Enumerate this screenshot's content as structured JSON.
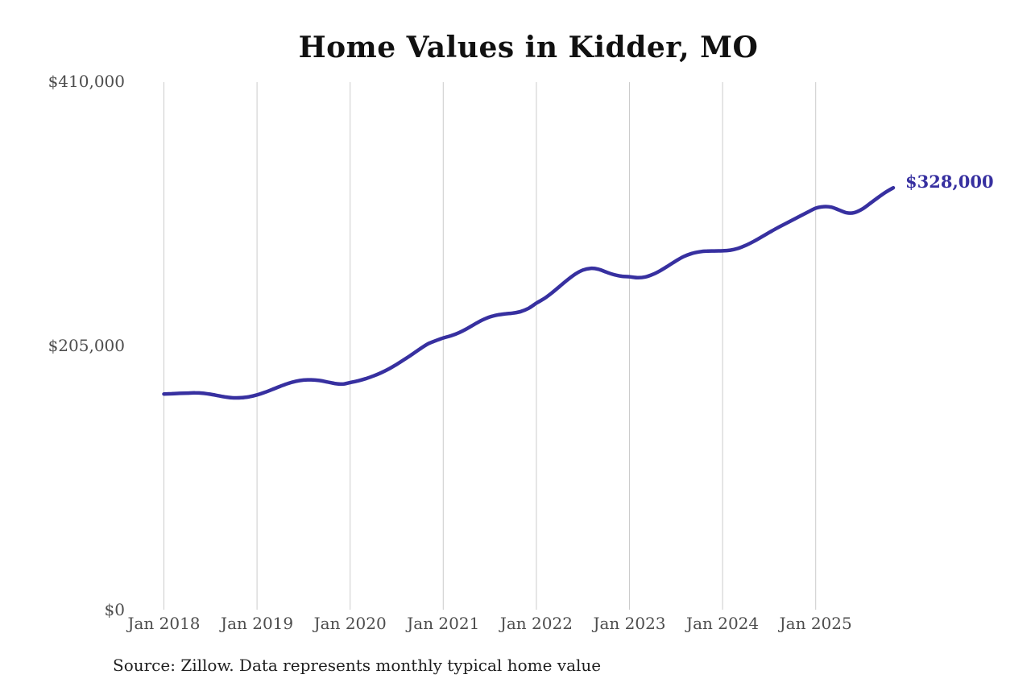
{
  "chart": {
    "title": "Home Values in Kidder, MO",
    "end_label": "$328,000",
    "source_note": "Source: Zillow. Data represents monthly typical home value",
    "colors": {
      "line": "#3730a0",
      "gridline": "#cccccc",
      "axis_text": "#4d4d4d",
      "title_text": "#111111",
      "annotation_text": "#3730a0",
      "source_text": "#1f1f1f",
      "background": "#ffffff"
    },
    "y_axis": {
      "labels": [
        {
          "text": "$410,000",
          "value": 410000
        },
        {
          "text": "$205,000",
          "value": 205000
        },
        {
          "text": "$0",
          "value": 0
        }
      ]
    },
    "x_axis": {
      "labels": [
        "Jan 2018",
        "Jan 2019",
        "Jan 2020",
        "Jan 2021",
        "Jan 2022",
        "Jan 2023",
        "Jan 2024",
        "Jan 2025"
      ]
    }
  },
  "chart_data": {
    "type": "line",
    "title": "Home Values in Kidder, MO",
    "xlabel": "",
    "ylabel": "",
    "ylim": [
      0,
      410000
    ],
    "y_tick_labels": [
      "$0",
      "$205,000",
      "$410,000"
    ],
    "x_tick_labels": [
      "Jan 2018",
      "Jan 2019",
      "Jan 2020",
      "Jan 2021",
      "Jan 2022",
      "Jan 2023",
      "Jan 2024",
      "Jan 2025"
    ],
    "x_start_month": "2018-01",
    "x_end_month": "2025-11",
    "grid": "vertical-only",
    "legend": "none",
    "end_annotation": {
      "text": "$328,000",
      "value": 328000
    },
    "source": "Source: Zillow. Data represents monthly typical home value",
    "series": [
      {
        "name": "Typical home value",
        "monthly_values": [
          168000,
          168200,
          168500,
          168700,
          168900,
          168600,
          167800,
          166700,
          165600,
          165000,
          165100,
          165900,
          167300,
          169300,
          171600,
          174000,
          176200,
          177900,
          178800,
          179000,
          178500,
          177400,
          176200,
          175700,
          176900,
          178200,
          179900,
          182000,
          184500,
          187500,
          191000,
          194800,
          198800,
          203000,
          206800,
          209300,
          211500,
          213200,
          215500,
          218500,
          222000,
          225300,
          227800,
          229300,
          230200,
          230800,
          232000,
          234500,
          238500,
          242000,
          246500,
          251500,
          256500,
          261000,
          264200,
          265500,
          264800,
          262600,
          260600,
          259400,
          259000,
          258300,
          258800,
          260800,
          263800,
          267500,
          271300,
          274700,
          277000,
          278300,
          278900,
          279000,
          279100,
          279600,
          281000,
          283400,
          286400,
          289800,
          293300,
          296700,
          299900,
          303000,
          306100,
          309200,
          312200,
          313400,
          313000,
          310800,
          308600,
          308800,
          311500,
          315800,
          320300,
          324500,
          328000
        ]
      }
    ]
  }
}
